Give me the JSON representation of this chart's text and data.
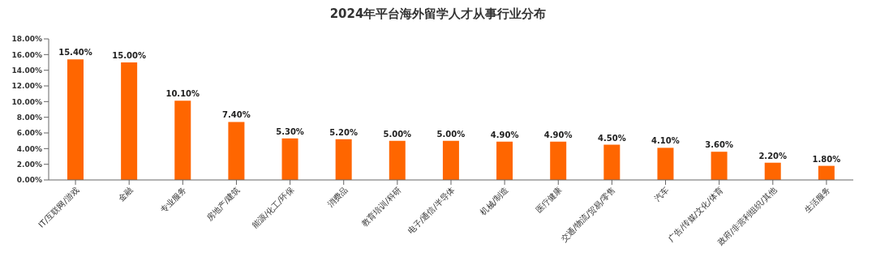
{
  "chart_data": {
    "type": "bar",
    "title": "2024年平台海外留学人才从事行业分布",
    "categories": [
      "IT/互联网/游戏",
      "金融",
      "专业服务",
      "房地产/建筑",
      "能源/化工/环保",
      "消费品",
      "教育培训/科研",
      "电子/通信/半导体",
      "机械/制造",
      "医疗健康",
      "交通/物流/贸易/零售",
      "汽车",
      "广告/传媒/文化/体育",
      "政府/非营利组织/其他",
      "生活服务"
    ],
    "values": [
      15.4,
      15.0,
      10.1,
      7.4,
      5.3,
      5.2,
      5.0,
      5.0,
      4.9,
      4.9,
      4.5,
      4.1,
      3.6,
      2.2,
      1.8
    ],
    "value_labels": [
      "15.40%",
      "15.00%",
      "10.10%",
      "7.40%",
      "5.30%",
      "5.20%",
      "5.00%",
      "5.00%",
      "4.90%",
      "4.90%",
      "4.50%",
      "4.10%",
      "3.60%",
      "2.20%",
      "1.80%"
    ],
    "color": "#ff6600",
    "ylim": [
      0,
      18
    ],
    "yticks": [
      {
        "value": 0,
        "label": "0.00%"
      },
      {
        "value": 2,
        "label": "2.00%"
      },
      {
        "value": 4,
        "label": "4.00%"
      },
      {
        "value": 6,
        "label": "6.00%"
      },
      {
        "value": 8,
        "label": "8.00%"
      },
      {
        "value": 10,
        "label": "10.00%"
      },
      {
        "value": 12,
        "label": "12.00%"
      },
      {
        "value": 14,
        "label": "14.00%"
      },
      {
        "value": 16,
        "label": "16.00%"
      },
      {
        "value": 18,
        "label": "18.00%"
      }
    ],
    "grid": false,
    "legend": false
  }
}
